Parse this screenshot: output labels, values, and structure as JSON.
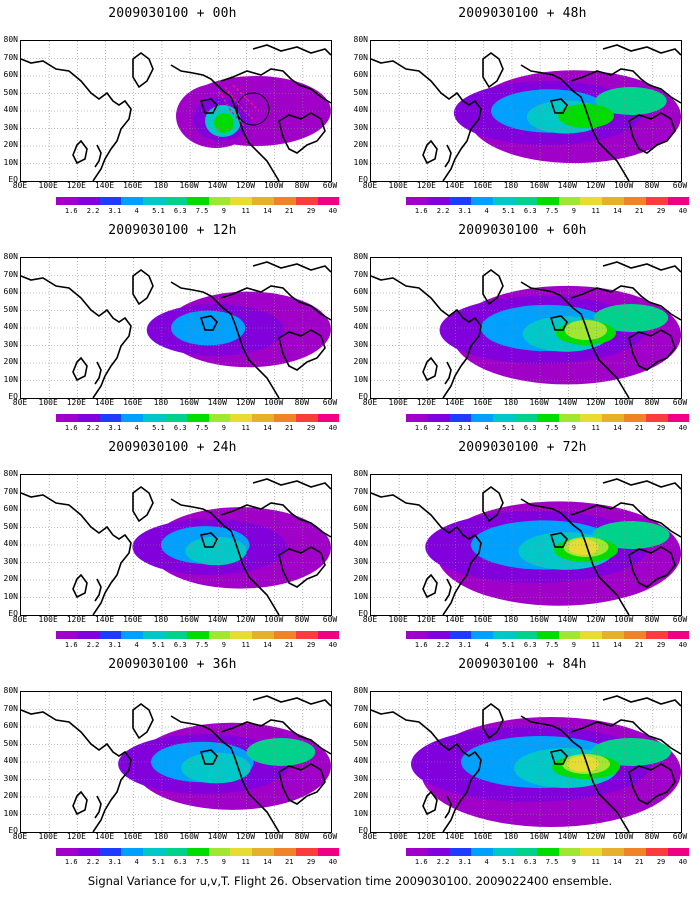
{
  "panels": [
    {
      "title": "2009030100 + 00h",
      "col": 0,
      "row": 0,
      "lead_hours": 0,
      "has_circle": true
    },
    {
      "title": "2009030100 + 12h",
      "col": 0,
      "row": 1,
      "lead_hours": 12
    },
    {
      "title": "2009030100 + 24h",
      "col": 0,
      "row": 2,
      "lead_hours": 24
    },
    {
      "title": "2009030100 + 36h",
      "col": 0,
      "row": 3,
      "lead_hours": 36
    },
    {
      "title": "2009030100 + 48h",
      "col": 1,
      "row": 0,
      "lead_hours": 48
    },
    {
      "title": "2009030100 + 60h",
      "col": 1,
      "row": 1,
      "lead_hours": 60
    },
    {
      "title": "2009030100 + 72h",
      "col": 1,
      "row": 2,
      "lead_hours": 72
    },
    {
      "title": "2009030100 + 84h",
      "col": 1,
      "row": 3,
      "lead_hours": 84
    }
  ],
  "lat_labels": [
    "80N",
    "70N",
    "60N",
    "50N",
    "40N",
    "30N",
    "20N",
    "10N",
    "EQ"
  ],
  "lon_labels": [
    "80E",
    "100E",
    "120E",
    "140E",
    "160E",
    "180",
    "160W",
    "140W",
    "120W",
    "100W",
    "80W",
    "60W"
  ],
  "colorbar": {
    "labels": [
      "1.6",
      "2.2",
      "3.1",
      "4",
      "5.1",
      "6.3",
      "7.5",
      "9",
      "11",
      "14",
      "21",
      "29",
      "40"
    ],
    "colors": [
      "#a000c8",
      "#8200dc",
      "#1e3cff",
      "#00a0ff",
      "#00c8c8",
      "#00d28c",
      "#00dc00",
      "#a0e632",
      "#e6dc32",
      "#e6af2d",
      "#f08228",
      "#fa3c3c",
      "#f00082"
    ]
  },
  "caption": "Signal Variance for u,v,T. Flight 26. Observation time 2009030100. 2009022400 ensemble."
}
